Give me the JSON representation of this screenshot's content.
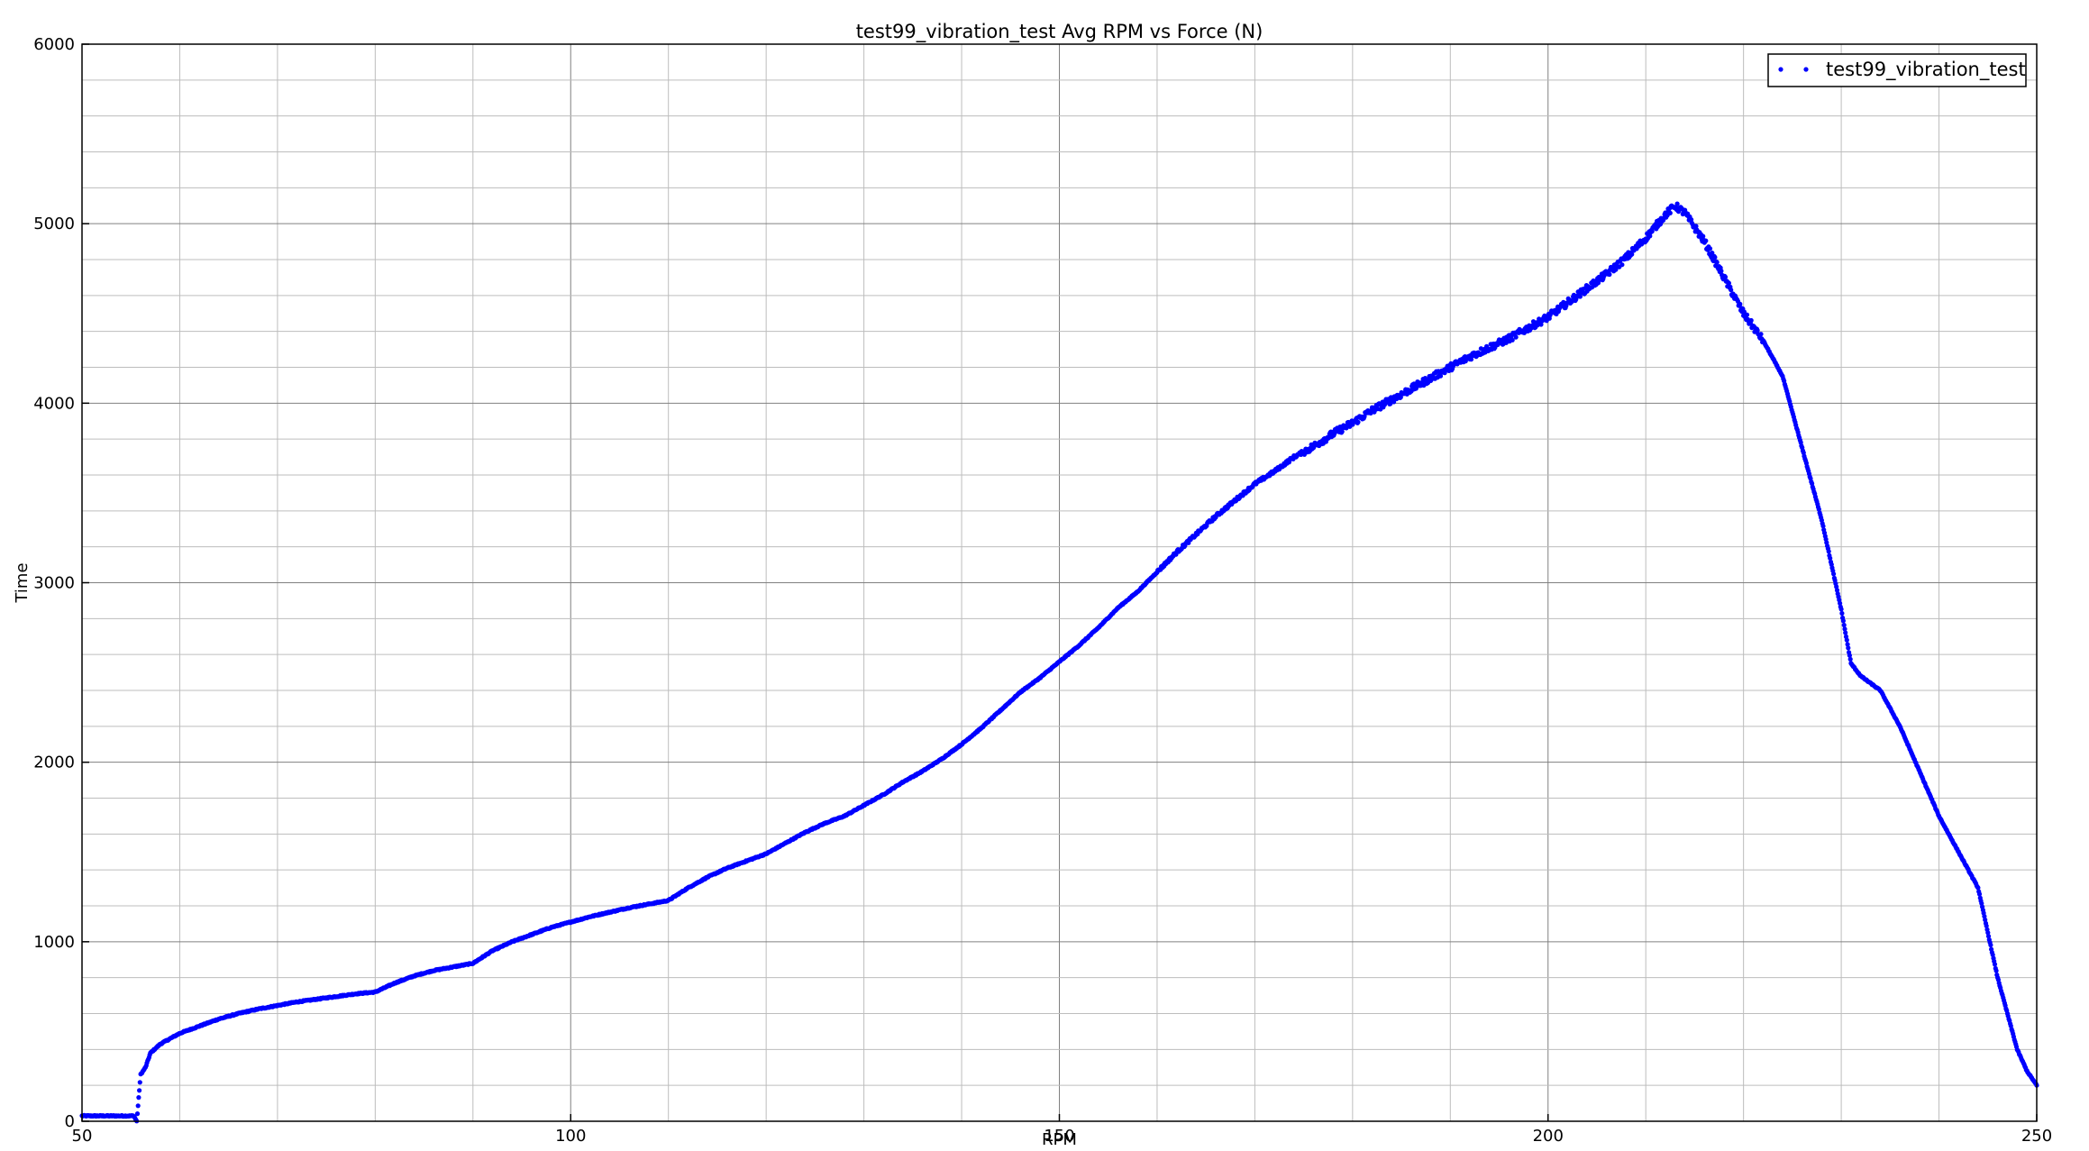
{
  "chart_data": {
    "type": "scatter",
    "title": "test99_vibration_test Avg RPM vs Force (N)",
    "xlabel": "RPM",
    "ylabel": "Time",
    "xlim": [
      50,
      250
    ],
    "ylim": [
      0,
      6000
    ],
    "x_ticks": [
      "50",
      "100",
      "150",
      "200",
      "250"
    ],
    "y_ticks": [
      "0",
      "1000",
      "2000",
      "3000",
      "4000",
      "5000",
      "6000"
    ],
    "grid": true,
    "legend_position": "top-right",
    "series": [
      {
        "name": "test99_vibration_test",
        "color": "#0000ff",
        "marker": "dot",
        "x": [
          50,
          52,
          54,
          55.3,
          55.6,
          56,
          56.5,
          57,
          58,
          59,
          60,
          62,
          64,
          66,
          68,
          70,
          72,
          74,
          76,
          78,
          80,
          82,
          84,
          86,
          88,
          90,
          92,
          94,
          96,
          98,
          100,
          102,
          104,
          106,
          108,
          110,
          112,
          114,
          116,
          118,
          120,
          122,
          124,
          126,
          128,
          130,
          132,
          134,
          136,
          138,
          140,
          142,
          144,
          146,
          148,
          150,
          152,
          154,
          156,
          158,
          160,
          162,
          164,
          166,
          168,
          170,
          172,
          174,
          176,
          178,
          180,
          182,
          184,
          186,
          188,
          190,
          192,
          194,
          196,
          198,
          200,
          202,
          204,
          206,
          208,
          210,
          212,
          213,
          214,
          216,
          218,
          220,
          222,
          224,
          226,
          228,
          230,
          231,
          232,
          234,
          236,
          238,
          240,
          242,
          244,
          246,
          248,
          249,
          250
        ],
        "y": [
          30,
          30,
          30,
          30,
          0,
          260,
          300,
          380,
          430,
          460,
          490,
          530,
          570,
          600,
          625,
          645,
          665,
          680,
          695,
          710,
          720,
          770,
          810,
          840,
          860,
          880,
          950,
          1000,
          1040,
          1080,
          1110,
          1140,
          1165,
          1190,
          1210,
          1230,
          1300,
          1360,
          1410,
          1450,
          1490,
          1550,
          1610,
          1660,
          1700,
          1760,
          1820,
          1890,
          1950,
          2020,
          2100,
          2190,
          2290,
          2390,
          2470,
          2560,
          2650,
          2750,
          2860,
          2950,
          3060,
          3170,
          3270,
          3370,
          3460,
          3550,
          3620,
          3700,
          3760,
          3830,
          3890,
          3960,
          4020,
          4080,
          4140,
          4200,
          4260,
          4310,
          4360,
          4420,
          4480,
          4560,
          4640,
          4720,
          4810,
          4920,
          5050,
          5100,
          5060,
          4900,
          4700,
          4500,
          4350,
          4150,
          3750,
          3350,
          2850,
          2550,
          2480,
          2400,
          2200,
          1950,
          1700,
          1500,
          1300,
          800,
          400,
          280,
          200
        ]
      }
    ]
  }
}
